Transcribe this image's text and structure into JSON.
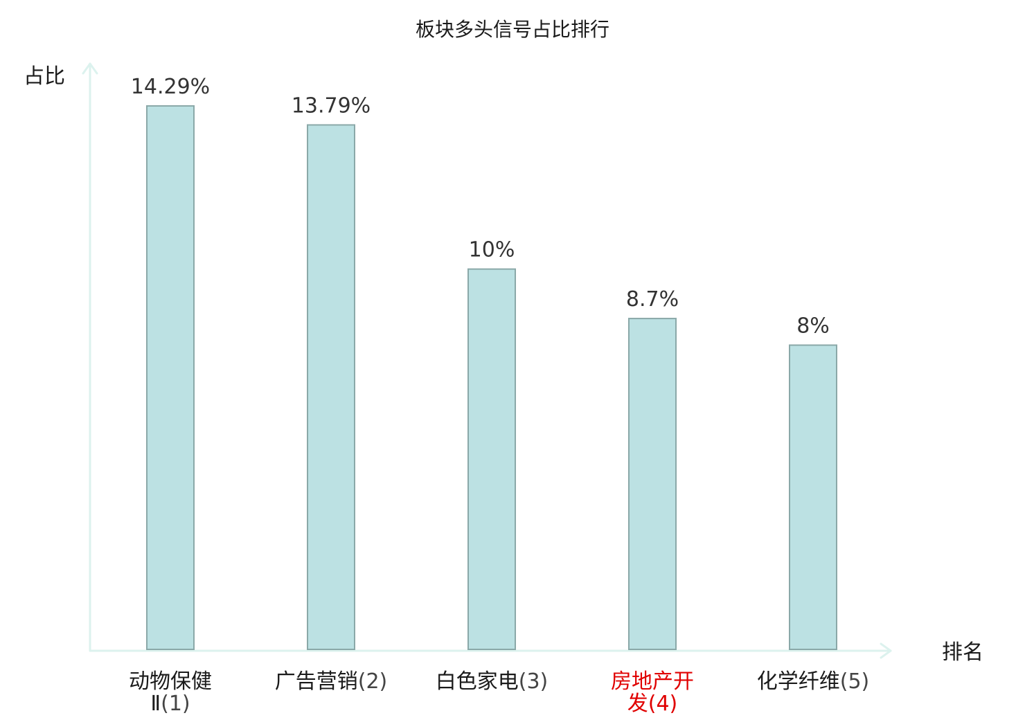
{
  "chart_data": {
    "type": "bar",
    "title": "板块多头信号占比排行",
    "xlabel": "排名",
    "ylabel": "占比",
    "ylim": [
      0,
      15.4
    ],
    "grid": false,
    "categories": [
      {
        "name": "动物保健Ⅱ",
        "rank": "(1)",
        "lines": [
          "动物保健",
          "Ⅱ"
        ],
        "highlight": false
      },
      {
        "name": "广告营销",
        "rank": "(2)",
        "lines": [
          "广告营销"
        ],
        "highlight": false
      },
      {
        "name": "白色家电",
        "rank": "(3)",
        "lines": [
          "白色家电"
        ],
        "highlight": false
      },
      {
        "name": "房地产开发",
        "rank": "(4)",
        "lines": [
          "房地产开",
          "发"
        ],
        "highlight": true
      },
      {
        "name": "化学纤维",
        "rank": "(5)",
        "lines": [
          "化学纤维"
        ],
        "highlight": false
      }
    ],
    "values": [
      14.29,
      13.79,
      10,
      8.7,
      8
    ],
    "value_labels": [
      "14.29%",
      "13.79%",
      "10%",
      "8.7%",
      "8%"
    ],
    "colors": {
      "bar_fill": "#bce1e3",
      "bar_stroke": "#8aa8a8",
      "axis": "#dcf2ee",
      "highlight_text": "#e00000"
    }
  }
}
